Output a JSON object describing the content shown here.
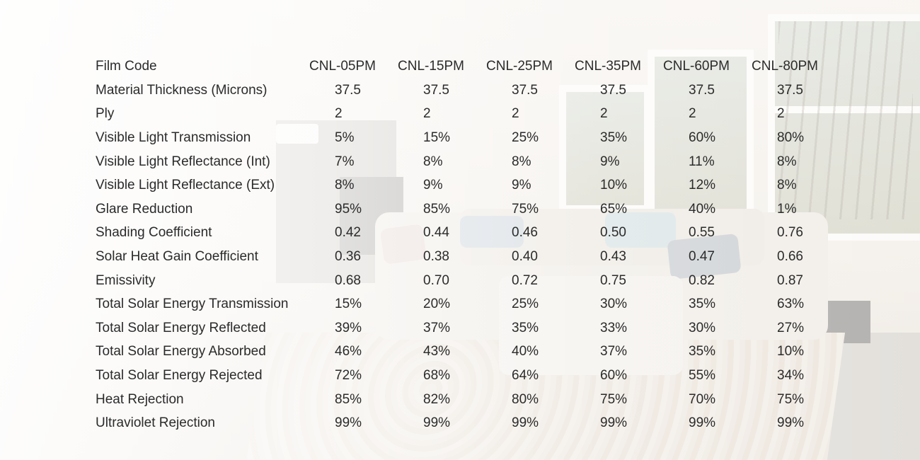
{
  "table": {
    "columns": [
      "Film Code",
      "CNL-05PM",
      "CNL-15PM",
      "CNL-25PM",
      "CNL-35PM",
      "CNL-60PM",
      "CNL-80PM"
    ],
    "rows": [
      {
        "label": "Material Thickness (Microns)",
        "values": [
          "37.5",
          "37.5",
          "37.5",
          "37.5",
          "37.5",
          "37.5"
        ]
      },
      {
        "label": "Ply",
        "values": [
          "2",
          "2",
          "2",
          "2",
          "2",
          "2"
        ]
      },
      {
        "label": "Visible Light Transmission",
        "values": [
          "5%",
          "15%",
          "25%",
          "35%",
          "60%",
          "80%"
        ]
      },
      {
        "label": "Visible Light Reflectance (Int)",
        "values": [
          "7%",
          "8%",
          "8%",
          "9%",
          "11%",
          "8%"
        ]
      },
      {
        "label": "Visible Light Reflectance (Ext)",
        "values": [
          "8%",
          "9%",
          "9%",
          "10%",
          "12%",
          "8%"
        ]
      },
      {
        "label": "Glare Reduction",
        "values": [
          "95%",
          "85%",
          "75%",
          "65%",
          "40%",
          "1%"
        ]
      },
      {
        "label": "Shading Coefficient",
        "values": [
          "0.42",
          "0.44",
          "0.46",
          "0.50",
          "0.55",
          "0.76"
        ]
      },
      {
        "label": "Solar Heat Gain Coefficient",
        "values": [
          "0.36",
          "0.38",
          "0.40",
          "0.43",
          "0.47",
          "0.66"
        ]
      },
      {
        "label": "Emissivity",
        "values": [
          "0.68",
          "0.70",
          "0.72",
          "0.75",
          "0.82",
          "0.87"
        ]
      },
      {
        "label": "Total Solar Energy Transmission",
        "values": [
          "15%",
          "20%",
          "25%",
          "30%",
          "35%",
          "63%"
        ]
      },
      {
        "label": "Total Solar Energy Reflected",
        "values": [
          "39%",
          "37%",
          "35%",
          "33%",
          "30%",
          "27%"
        ]
      },
      {
        "label": "Total Solar Energy Absorbed",
        "values": [
          "46%",
          "43%",
          "40%",
          "37%",
          "35%",
          "10%"
        ]
      },
      {
        "label": "Total Solar Energy Rejected",
        "values": [
          "72%",
          "68%",
          "64%",
          "60%",
          "55%",
          "34%"
        ]
      },
      {
        "label": "Heat Rejection",
        "values": [
          "85%",
          "82%",
          "80%",
          "75%",
          "70%",
          "75%"
        ]
      },
      {
        "label": "Ultraviolet Rejection",
        "values": [
          "99%",
          "99%",
          "99%",
          "99%",
          "99%",
          "99%"
        ]
      }
    ]
  }
}
